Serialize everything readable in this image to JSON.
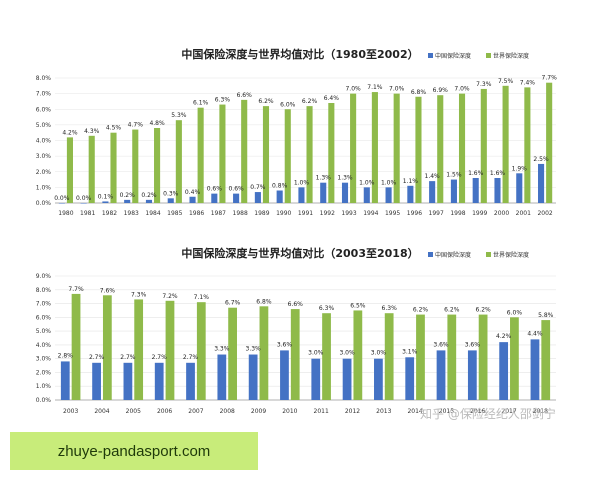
{
  "chart_data": [
    {
      "type": "bar",
      "title": "中国保险深度与世界均值对比（1980至2002）",
      "categories": [
        "1980",
        "1981",
        "1982",
        "1983",
        "1984",
        "1985",
        "1986",
        "1987",
        "1988",
        "1989",
        "1990",
        "1991",
        "1992",
        "1993",
        "1994",
        "1995",
        "1996",
        "1997",
        "1998",
        "1999",
        "2000",
        "2001",
        "2002"
      ],
      "series": [
        {
          "name": "中国保险深度",
          "color": "#4472c4",
          "values": [
            0.0,
            0.0,
            0.1,
            0.2,
            0.2,
            0.3,
            0.4,
            0.6,
            0.6,
            0.7,
            0.8,
            1.0,
            1.3,
            1.3,
            1.0,
            1.0,
            1.1,
            1.4,
            1.5,
            1.6,
            1.6,
            1.9,
            2.5
          ]
        },
        {
          "name": "世界保险深度",
          "color": "#8fba4a",
          "values": [
            4.2,
            4.3,
            4.5,
            4.7,
            4.8,
            5.3,
            6.1,
            6.3,
            6.6,
            6.2,
            6.0,
            6.2,
            6.4,
            7.0,
            7.1,
            7.0,
            6.8,
            6.9,
            7.0,
            7.3,
            7.5,
            7.4,
            7.7
          ]
        }
      ],
      "labels": {
        "china": [
          "0.0%",
          "0.0%",
          "0.1%",
          "0.2%",
          "0.2%",
          "0.3%",
          "0.4%",
          "0.6%",
          "0.6%",
          "0.7%",
          "0.8%",
          "1.0%",
          "1.3%",
          "1.3%",
          "1.0%",
          "1.0%",
          "1.1%",
          "1.4%",
          "1.5%",
          "1.6%",
          "1.6%",
          "1.9%",
          "2.5%"
        ],
        "world": [
          "4.2%",
          "4.3%",
          "4.5%",
          "4.7%",
          "4.8%",
          "5.3%",
          "6.1%",
          "6.3%",
          "6.6%",
          "6.2%",
          "6.0%",
          "6.2%",
          "6.4%",
          "7.0%",
          "7.1%",
          "7.0%",
          "6.8%",
          "6.9%",
          "7.0%",
          "7.3%",
          "7.5%",
          "7.4%",
          "7.7%"
        ]
      },
      "ylim": [
        0,
        8
      ],
      "yticks": [
        "0.0%",
        "1.0%",
        "2.0%",
        "3.0%",
        "4.0%",
        "5.0%",
        "6.0%",
        "7.0%",
        "8.0%"
      ],
      "grid": true,
      "legend_placement": "top-right"
    },
    {
      "type": "bar",
      "title": "中国保险深度与世界均值对比（2003至2018）",
      "categories": [
        "2003",
        "2004",
        "2005",
        "2006",
        "2007",
        "2008",
        "2009",
        "2010",
        "2011",
        "2012",
        "2013",
        "2014",
        "2015",
        "2016",
        "2017",
        "2018"
      ],
      "series": [
        {
          "name": "中国保险深度",
          "color": "#4472c4",
          "values": [
            2.8,
            2.7,
            2.7,
            2.7,
            2.7,
            3.3,
            3.3,
            3.6,
            3.0,
            3.0,
            3.0,
            3.1,
            3.6,
            3.6,
            4.2,
            4.4
          ]
        },
        {
          "name": "世界保险深度",
          "color": "#8fba4a",
          "values": [
            7.7,
            7.6,
            7.3,
            7.2,
            7.1,
            6.7,
            6.8,
            6.6,
            6.3,
            6.5,
            6.3,
            6.2,
            6.2,
            6.2,
            6.0,
            5.8
          ]
        }
      ],
      "labels": {
        "china": [
          "2.8%",
          "2.7%",
          "2.7%",
          "2.7%",
          "2.7%",
          "3.3%",
          "3.3%",
          "3.6%",
          "3.0%",
          "3.0%",
          "3.0%",
          "3.1%",
          "3.6%",
          "3.6%",
          "4.2%",
          "4.4%"
        ],
        "world": [
          "7.7%",
          "7.6%",
          "7.3%",
          "7.2%",
          "7.1%",
          "6.7%",
          "6.8%",
          "6.6%",
          "6.3%",
          "6.5%",
          "6.3%",
          "6.2%",
          "6.2%",
          "6.2%",
          "6.0%",
          "5.8%"
        ]
      },
      "ylim": [
        0,
        9
      ],
      "yticks": [
        "0.0%",
        "1.0%",
        "2.0%",
        "3.0%",
        "4.0%",
        "5.0%",
        "6.0%",
        "7.0%",
        "8.0%",
        "9.0%"
      ],
      "grid": true,
      "legend_placement": "top-right"
    }
  ],
  "watermark": "知乎 @保险经纪人邵剑宁",
  "site_banner": "zhuye-pandasport.com"
}
